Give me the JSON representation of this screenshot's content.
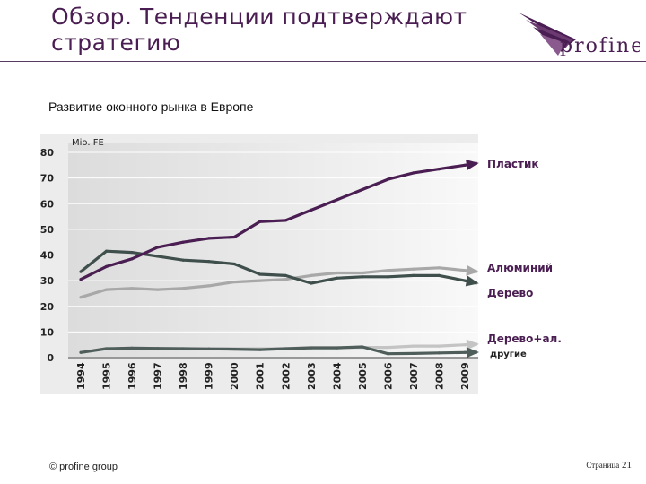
{
  "header": {
    "title": "Обзор. Тенденции подтверждают стратегию",
    "logo_text": "profine"
  },
  "subtitle": "Развитие оконного рынка в Европе",
  "footer": {
    "copyright": "© profine group",
    "page_label": "Страница",
    "page_number": "21"
  },
  "colors": {
    "plastic": "#4a1e52",
    "aluminum": "#a8a8a8",
    "wood": "#3f4f4c",
    "woodal": "#c4c4c4",
    "other": "#4f5e5a"
  },
  "chart_data": {
    "type": "line",
    "unit_label": "Mio. FE",
    "x": [
      "1994",
      "1995",
      "1996",
      "1997",
      "1998",
      "1999",
      "2000",
      "2001",
      "2002",
      "2003",
      "2004",
      "2005",
      "2006",
      "2007",
      "2008",
      "2009"
    ],
    "ylim": [
      0,
      80
    ],
    "yticks": [
      0,
      10,
      20,
      30,
      40,
      50,
      60,
      70,
      80
    ],
    "series": [
      {
        "key": "plastic",
        "name": "Пластик",
        "values": [
          30.5,
          35.5,
          38.5,
          43,
          45,
          46.5,
          47,
          53,
          53.5,
          57.5,
          61.5,
          65.5,
          69.5,
          72,
          73.5,
          75
        ]
      },
      {
        "key": "aluminum",
        "name": "Алюминий",
        "values": [
          23.5,
          26.5,
          27,
          26.5,
          27,
          28,
          29.5,
          30,
          30.5,
          32,
          33,
          33,
          34,
          34.5,
          35,
          34
        ]
      },
      {
        "key": "wood",
        "name": "Дерево",
        "values": [
          33.5,
          41.5,
          41,
          39.5,
          38,
          37.5,
          36.5,
          32.5,
          32,
          29,
          31,
          31.5,
          31.5,
          32,
          32,
          30
        ]
      },
      {
        "key": "woodal",
        "name": "Дерево+ал.",
        "values": [
          2,
          3.5,
          3.5,
          3.5,
          3.5,
          3.5,
          3.5,
          3.5,
          3.5,
          4,
          4,
          4,
          4,
          4.5,
          4.5,
          5
        ]
      },
      {
        "key": "other",
        "name": "другие",
        "values": [
          2,
          3.5,
          3.7,
          3.6,
          3.5,
          3.4,
          3.3,
          3.1,
          3.5,
          3.8,
          3.8,
          4.2,
          1.5,
          1.6,
          1.8,
          2
        ]
      }
    ]
  }
}
